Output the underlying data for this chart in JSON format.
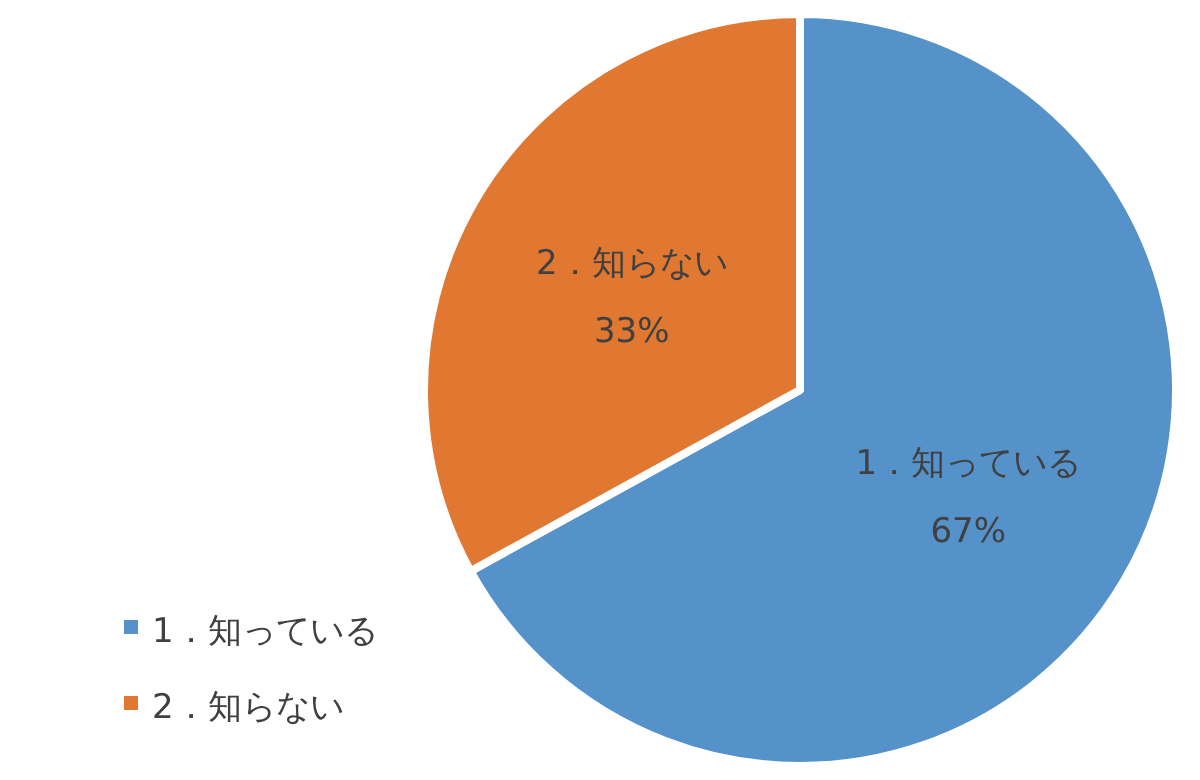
{
  "chart_data": {
    "type": "pie",
    "categories": [
      "1．知っている",
      "2．知らない"
    ],
    "values": [
      67,
      33
    ],
    "value_labels": [
      "67%",
      "33%"
    ],
    "colors": [
      "#5592c9",
      "#e07832"
    ],
    "legend": "bottom left"
  }
}
